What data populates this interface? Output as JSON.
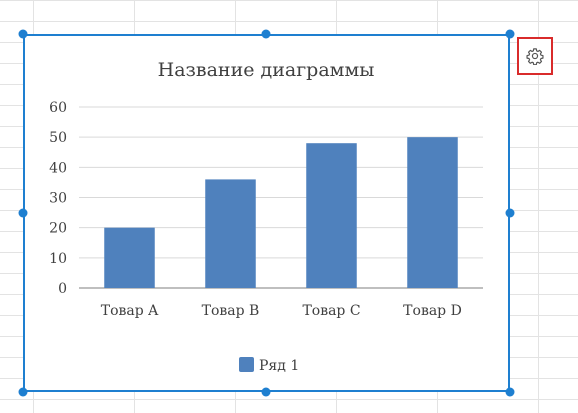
{
  "chart_data": {
    "type": "bar",
    "title": "Название диаграммы",
    "categories": [
      "Товар A",
      "Товар B",
      "Товар C",
      "Товар D"
    ],
    "series": [
      {
        "name": "Ряд 1",
        "values": [
          20,
          36,
          48,
          50
        ]
      }
    ],
    "ylim": [
      0,
      60
    ],
    "yticks": [
      0,
      10,
      20,
      30,
      40,
      50,
      60
    ],
    "grid": true,
    "legend": "bottom",
    "colors": {
      "series": "#4f81bd",
      "grid": "#d9d9d9",
      "axis": "#7f7f7f",
      "text": "#404040"
    }
  },
  "ui": {
    "selection_color": "#1e7fd0",
    "settings_highlight": "#d92b2b",
    "settings_icon": "gear-icon"
  }
}
